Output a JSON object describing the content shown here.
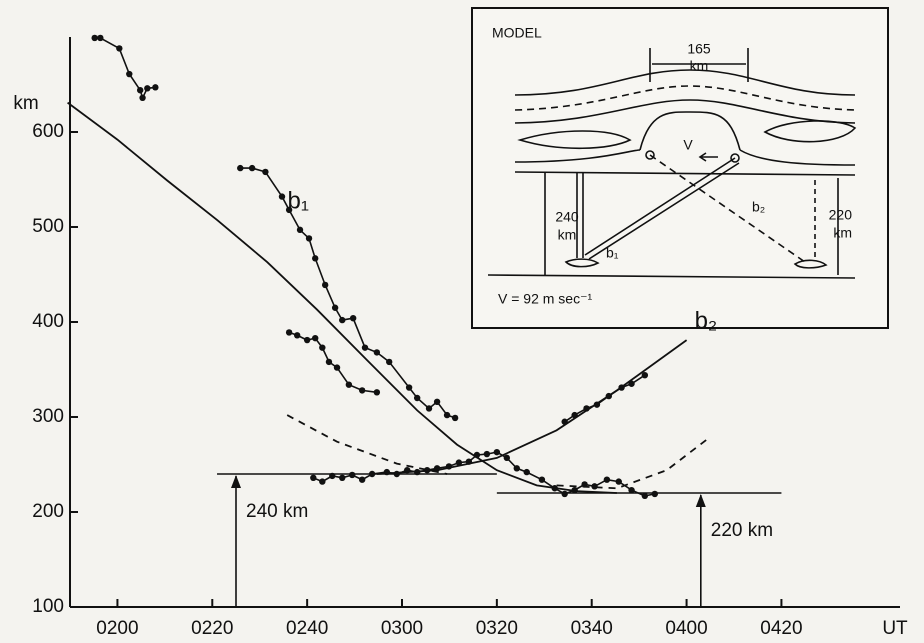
{
  "chart_data": {
    "type": "line",
    "x_label": "UT",
    "y_label": "km",
    "xlim": [
      110,
      285
    ],
    "ylim": [
      100,
      700
    ],
    "xticks": [
      {
        "value": 120,
        "label": "0200"
      },
      {
        "value": 140,
        "label": "0220"
      },
      {
        "value": 160,
        "label": "0240"
      },
      {
        "value": 180,
        "label": "0300"
      },
      {
        "value": 200,
        "label": "0320"
      },
      {
        "value": 220,
        "label": "0340"
      },
      {
        "value": 240,
        "label": "0400"
      },
      {
        "value": 260,
        "label": "0420"
      }
    ],
    "yticks": [
      100,
      200,
      300,
      400,
      500,
      600
    ],
    "grid": false,
    "series": [
      {
        "color": "#111",
        "style": "solid",
        "markers": true,
        "x": [
          115.2,
          116.4,
          120.4,
          122.5,
          124.8,
          125.3,
          126.3,
          128
        ],
        "values": [
          699,
          699,
          688,
          661,
          644,
          636,
          646,
          647
        ]
      },
      {
        "color": "#111",
        "style": "solid",
        "markers": true,
        "x": [
          145.9,
          148.4,
          151.2,
          154.7,
          156.2,
          158.5,
          160.4,
          161.7,
          163.8,
          165.9,
          167.4,
          169.7,
          172.2,
          174.7,
          177.3,
          181.5,
          183.2,
          185.7,
          187.4,
          189.5,
          191.2
        ],
        "values": [
          562,
          562,
          558,
          532,
          518,
          497,
          488,
          467,
          439,
          415,
          402,
          404,
          373,
          368,
          358,
          331,
          320,
          309,
          316,
          302,
          299
        ]
      },
      {
        "color": "#111",
        "style": "solid",
        "markers": true,
        "x": [
          156.2,
          157.9,
          160,
          161.7,
          163.2,
          164.6,
          166.3,
          168.8,
          171.6,
          174.7
        ],
        "values": [
          389,
          386,
          381,
          383,
          373,
          358,
          352,
          334,
          328,
          326
        ]
      },
      {
        "color": "#111",
        "style": "solid",
        "markers": true,
        "x": [
          161.3,
          163.2,
          165.3,
          167.4,
          169.5,
          171.6,
          173.7,
          176.8,
          178.9,
          181.1,
          183.2,
          185.3,
          187.4,
          189.9,
          192,
          194.1,
          195.8,
          197.9,
          200,
          202.1,
          204.2,
          206.3,
          209.5,
          212.2,
          214.3,
          216.4,
          218.5,
          220.6,
          223.2,
          225.7,
          228.4,
          231.2,
          233.3
        ],
        "values": [
          236,
          232,
          238,
          236,
          239,
          234,
          240,
          242,
          240,
          244,
          242,
          244,
          246,
          248,
          252,
          253,
          260,
          261,
          263,
          257,
          246,
          242,
          234,
          225,
          219,
          223,
          229,
          227,
          234,
          232,
          223,
          217,
          219
        ]
      },
      {
        "color": "#111",
        "style": "solid",
        "markers": true,
        "x": [
          214.3,
          216.4,
          218.9,
          221.1,
          223.6,
          226.3,
          228.4,
          231.2
        ],
        "values": [
          295,
          302,
          309,
          313,
          322,
          331,
          335,
          344
        ]
      },
      {
        "name": "b₁",
        "color": "#111",
        "style": "solid",
        "markers": false,
        "x": [
          109.5,
          120,
          130.5,
          141.1,
          151.6,
          162.1,
          172.6,
          183.2,
          191.6,
          200,
          208.4,
          216.8,
          225.3
        ],
        "values": [
          631,
          592,
          549,
          507,
          463,
          413,
          360,
          307,
          271,
          244,
          228,
          222,
          220
        ]
      },
      {
        "name": "b₂",
        "color": "#111",
        "style": "solid",
        "markers": false,
        "x": [
          174.7,
          187.4,
          200,
          212.6,
          225.3,
          240
        ],
        "values": [
          240,
          244,
          257,
          286,
          328,
          381
        ]
      },
      {
        "color": "#111",
        "style": "dashed",
        "markers": false,
        "x": [
          155.8,
          166.3,
          178.9,
          189.5
        ],
        "values": [
          302,
          274,
          251,
          240
        ]
      },
      {
        "color": "#111",
        "style": "dashed",
        "markers": false,
        "x": [
          212.6,
          225.3,
          235.8,
          244.2
        ],
        "values": [
          228,
          225,
          244,
          276
        ]
      }
    ],
    "reference_lines": [
      {
        "value": 240,
        "from": 141,
        "to": 200,
        "arrow_x": 145,
        "label": "240 km"
      },
      {
        "value": 220,
        "from": 200,
        "to": 260,
        "arrow_x": 243,
        "label": "220 km"
      }
    ]
  },
  "inset": {
    "title": "MODEL",
    "width_value": "165",
    "width_unit": "km",
    "velocity_symbol": "V",
    "left_height": "240",
    "left_unit": "km",
    "right_height": "220",
    "right_unit": "km",
    "ray_1": "b₁",
    "ray_2": "b₂",
    "velocity": "V = 92 m sec⁻¹"
  }
}
